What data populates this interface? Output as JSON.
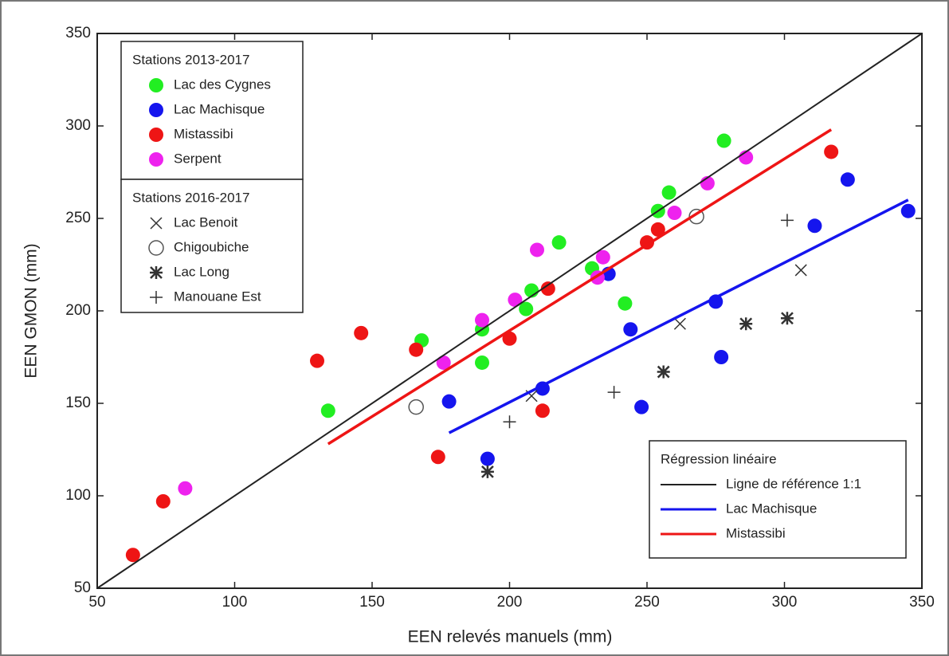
{
  "chart_data": {
    "type": "scatter",
    "x_label": "EEN relevés manuels (mm)",
    "y_label": "EEN GMON (mm)",
    "xlim": [
      50,
      350
    ],
    "ylim": [
      50,
      350
    ],
    "xticks": [
      50,
      100,
      150,
      200,
      250,
      300,
      350
    ],
    "yticks": [
      50,
      100,
      150,
      200,
      250,
      300,
      350
    ],
    "legends": [
      {
        "title": "Stations 2013-2017"
      },
      {
        "title": "Stations 2016-2017"
      },
      {
        "title": "Régression linéaire"
      }
    ],
    "series": [
      {
        "name": "Lac des Cygnes",
        "color": "#22ee22",
        "marker": "circle",
        "legend": 0,
        "x": [
          134,
          168,
          190,
          190,
          206,
          208,
          218,
          230,
          242,
          254,
          258,
          278
        ],
        "values": [
          146,
          184,
          190,
          172,
          201,
          211,
          237,
          223,
          204,
          254,
          264,
          292
        ]
      },
      {
        "name": "Lac Machisque",
        "color": "#1515ee",
        "marker": "circle",
        "legend": 0,
        "x": [
          178,
          192,
          212,
          236,
          244,
          248,
          275,
          277,
          311,
          323,
          345
        ],
        "values": [
          151,
          120,
          158,
          220,
          190,
          148,
          205,
          175,
          246,
          271,
          254
        ]
      },
      {
        "name": "Mistassibi",
        "color": "#ee1515",
        "marker": "circle",
        "legend": 0,
        "x": [
          63,
          74,
          130,
          146,
          166,
          174,
          200,
          212,
          214,
          250,
          254,
          317
        ],
        "values": [
          68,
          97,
          173,
          188,
          179,
          121,
          185,
          146,
          212,
          237,
          244,
          286
        ]
      },
      {
        "name": "Serpent",
        "color": "#ee22ee",
        "marker": "circle",
        "legend": 0,
        "x": [
          82,
          176,
          190,
          202,
          210,
          232,
          234,
          260,
          272,
          286
        ],
        "values": [
          104,
          172,
          195,
          206,
          233,
          218,
          229,
          253,
          269,
          283
        ]
      },
      {
        "name": "Lac Benoit",
        "color": "#333333",
        "marker": "x",
        "legend": 1,
        "x": [
          208,
          262,
          306
        ],
        "values": [
          154,
          193,
          222
        ]
      },
      {
        "name": "Chigoubiche",
        "color": "#333333",
        "marker": "open-circle",
        "legend": 1,
        "x": [
          166,
          268
        ],
        "values": [
          148,
          251
        ]
      },
      {
        "name": "Lac Long",
        "color": "#333333",
        "marker": "star",
        "legend": 1,
        "x": [
          192,
          256,
          286,
          301
        ],
        "values": [
          113,
          167,
          193,
          196
        ]
      },
      {
        "name": "Manouane Est",
        "color": "#333333",
        "marker": "plus",
        "legend": 1,
        "x": [
          200,
          238,
          301
        ],
        "values": [
          140,
          156,
          249
        ]
      },
      {
        "name": "Ligne de référence 1:1",
        "color": "#222222",
        "marker": "line",
        "legend": 2,
        "x": [
          50,
          350
        ],
        "values": [
          50,
          350
        ]
      },
      {
        "name": "Lac Machisque",
        "color": "#1515ee",
        "marker": "line",
        "legend": 2,
        "x": [
          178,
          345
        ],
        "values": [
          134,
          260
        ]
      },
      {
        "name": "Mistassibi",
        "color": "#ee1515",
        "marker": "line",
        "legend": 2,
        "x": [
          134,
          317
        ],
        "values": [
          128,
          298
        ]
      }
    ]
  }
}
